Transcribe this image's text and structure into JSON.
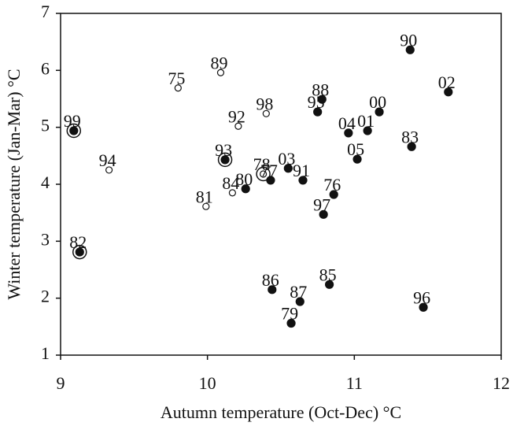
{
  "chart_data": {
    "type": "scatter",
    "x_label": "Autumn temperature (Oct-Dec) °C",
    "y_label": "Winter temperature (Jan-Mar) °C",
    "labels": [
      "99",
      "94",
      "82",
      "75",
      "89",
      "92",
      "98",
      "93",
      "81",
      "84",
      "80",
      "78",
      "77",
      "03",
      "91",
      "95",
      "88",
      "04",
      "01",
      "00",
      "05",
      "76",
      "97",
      "90",
      "02",
      "83",
      "86",
      "87",
      "79",
      "85",
      "96"
    ],
    "x": [
      9.09,
      9.33,
      9.13,
      9.8,
      10.09,
      10.21,
      10.4,
      10.12,
      9.99,
      10.17,
      10.26,
      10.38,
      10.43,
      10.55,
      10.65,
      10.75,
      10.78,
      10.96,
      11.09,
      11.17,
      11.02,
      10.86,
      10.79,
      11.38,
      11.64,
      11.39,
      10.44,
      10.63,
      10.57,
      10.83,
      11.47
    ],
    "y": [
      4.94,
      4.25,
      2.81,
      5.69,
      5.96,
      5.02,
      5.24,
      4.43,
      3.61,
      3.85,
      3.92,
      4.18,
      4.07,
      4.28,
      4.07,
      5.27,
      5.49,
      4.9,
      4.94,
      5.27,
      4.44,
      3.82,
      3.47,
      6.36,
      5.62,
      4.66,
      2.15,
      1.94,
      1.56,
      2.24,
      1.84
    ],
    "filled": [
      true,
      false,
      true,
      false,
      false,
      false,
      false,
      true,
      false,
      false,
      true,
      false,
      true,
      true,
      true,
      true,
      true,
      true,
      true,
      true,
      true,
      true,
      true,
      true,
      true,
      true,
      true,
      true,
      true,
      true,
      true
    ],
    "circled": [
      true,
      false,
      true,
      false,
      false,
      false,
      false,
      true,
      false,
      false,
      false,
      true,
      false,
      false,
      false,
      false,
      false,
      false,
      false,
      false,
      false,
      false,
      false,
      false,
      false,
      false,
      false,
      false,
      false,
      false,
      false
    ],
    "color": "#111111",
    "xlim": [
      9,
      12
    ],
    "xticks": [
      9,
      10,
      11,
      12
    ],
    "ylim": [
      1,
      7
    ],
    "yticks": [
      1,
      2,
      3,
      4,
      5,
      6,
      7
    ],
    "grid": false
  }
}
